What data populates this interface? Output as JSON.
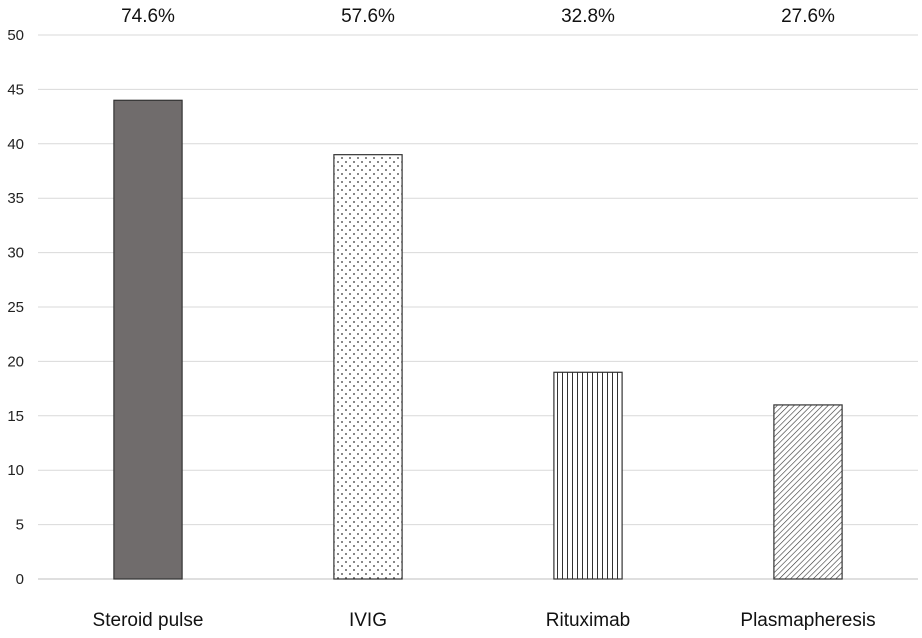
{
  "chart_data": {
    "type": "bar",
    "categories": [
      "Steroid pulse",
      "IVIG",
      "Rituximab",
      "Plasmapheresis"
    ],
    "values": [
      44,
      39,
      19,
      16
    ],
    "data_labels": [
      "74.6%",
      "57.6%",
      "32.8%",
      "27.6%"
    ],
    "ylim": [
      0,
      50
    ],
    "yticks": [
      0,
      5,
      10,
      15,
      20,
      25,
      30,
      35,
      40,
      45,
      50
    ],
    "grid": true,
    "legend": "none",
    "bar_fills": [
      "solid-dark-gray",
      "dotted",
      "vertical-lines",
      "diagonal-hatch"
    ],
    "colors": {
      "solid": "#706c6c",
      "pattern": "#333333",
      "grid": "#d9d9d9",
      "text": "#111111"
    }
  }
}
